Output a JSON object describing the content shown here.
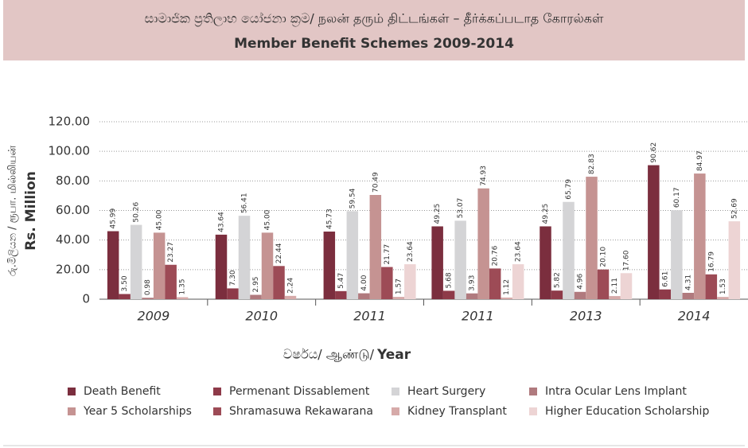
{
  "chart_data": {
    "type": "bar",
    "title": "සාමාජික ප්‍රතිලාභ යෝජනා ක්‍රම/ நலன் தரும் திட்டங்கள் – தீர்க்கப்படாத கோரல்கள்",
    "subtitle": "Member Benefit Schemes 2009-2014",
    "y_label_local": "රු.මිලියන / ரூபா. மில்லியன்",
    "y_label": "Rs. Million",
    "x_label_local": "වර්ෂය/ ஆண்டு/",
    "x_label": "Year",
    "categories": [
      "2009",
      "2010",
      "2011",
      "2011",
      "2013",
      "2014"
    ],
    "series": [
      {
        "name": "Death Benefit",
        "color": "#7b2e3e",
        "values": [
          45.99,
          43.64,
          45.73,
          49.25,
          49.25,
          90.62
        ],
        "value_labels": [
          "45.99",
          "43.64",
          "45.73",
          "49.25",
          "49.25",
          "90.62"
        ]
      },
      {
        "name": "Permenant Dissablement",
        "color": "#8e3a49",
        "values": [
          3.5,
          7.3,
          5.47,
          5.68,
          5.82,
          6.61
        ],
        "value_labels": [
          "3.50",
          "7.30",
          "5.47",
          "5.68",
          "5.82",
          "6.61"
        ]
      },
      {
        "name": "Heart Surgery",
        "color": "#d4d4d6",
        "values": [
          50.26,
          56.41,
          59.54,
          53.07,
          65.79,
          60.17
        ],
        "value_labels": [
          "50.26",
          "56.41",
          "59.54",
          "53.07",
          "65.79",
          "60.17"
        ]
      },
      {
        "name": "Intra Ocular Lens Implant",
        "color": "#b07a7e",
        "values": [
          0.98,
          2.95,
          4.0,
          3.93,
          4.96,
          4.31
        ],
        "value_labels": [
          "0.98",
          "2.95",
          "4.00",
          "3.93",
          "4.96",
          "4.31"
        ]
      },
      {
        "name": "Year 5 Scholarships",
        "color": "#c59392",
        "values": [
          45.0,
          45.0,
          70.49,
          74.93,
          82.83,
          84.97
        ],
        "value_labels": [
          "45.00",
          "45.00",
          "70.49",
          "74.93",
          "82.83",
          "84.97"
        ]
      },
      {
        "name": "Shramasuwa Rekawarana",
        "color": "#9d4b56",
        "values": [
          23.27,
          22.44,
          21.77,
          20.76,
          20.1,
          16.79
        ],
        "value_labels": [
          "23.27",
          "22.44",
          "21.77",
          "20.76",
          "20.10",
          "16.79"
        ]
      },
      {
        "name": "Kidney Transplant",
        "color": "#d6aaa9",
        "values": [
          1.35,
          2.24,
          1.57,
          1.12,
          2.11,
          1.53
        ],
        "value_labels": [
          "1.35",
          "2.24",
          "1.57",
          "1.12",
          "2.11",
          "1.53"
        ]
      },
      {
        "name": "Higher Education Scholarship",
        "color": "#edd4d4",
        "values": [
          null,
          null,
          23.64,
          23.64,
          17.6,
          52.69
        ],
        "value_labels": [
          null,
          null,
          "23.64",
          "23.64",
          "17.60",
          "52.69"
        ]
      }
    ],
    "ylim": [
      0,
      120
    ],
    "yticks": [
      0,
      {
        "value": 20,
        "label": "20.00"
      },
      {
        "value": 40,
        "label": "40.00"
      },
      {
        "value": 60,
        "label": "60.00"
      },
      {
        "value": 80,
        "label": "80.00"
      },
      {
        "value": 100,
        "label": "100.00"
      },
      {
        "value": 120,
        "label": "120.00"
      }
    ],
    "grid": true
  }
}
